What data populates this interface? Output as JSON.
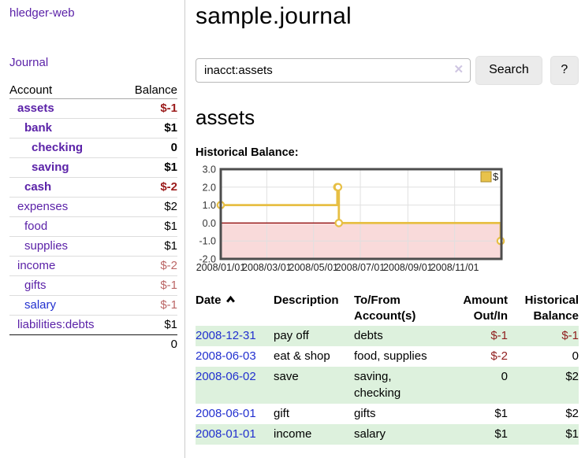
{
  "app": {
    "title": "hledger-web"
  },
  "sidebar": {
    "nav": {
      "journal_label": "Journal"
    },
    "accounts_table": {
      "headers": [
        "Account",
        "Balance"
      ],
      "rows": [
        {
          "account": "assets",
          "depth": 1,
          "bold": true,
          "balance": "$-1",
          "balance_style": "neg-strong"
        },
        {
          "account": "bank",
          "depth": 2,
          "bold": true,
          "balance": "$1",
          "balance_style": "pos"
        },
        {
          "account": "checking",
          "depth": 3,
          "bold": true,
          "balance": "0",
          "balance_style": "pos"
        },
        {
          "account": "saving",
          "depth": 3,
          "bold": true,
          "balance": "$1",
          "balance_style": "pos"
        },
        {
          "account": "cash",
          "depth": 2,
          "bold": true,
          "balance": "$-2",
          "balance_style": "neg-strong"
        },
        {
          "account": "expenses",
          "depth": 1,
          "bold": false,
          "balance": "$2",
          "balance_style": "pos"
        },
        {
          "account": "food",
          "depth": 2,
          "bold": false,
          "balance": "$1",
          "balance_style": "pos"
        },
        {
          "account": "supplies",
          "depth": 2,
          "bold": false,
          "balance": "$1",
          "balance_style": "pos"
        },
        {
          "account": "income",
          "depth": 1,
          "bold": false,
          "balance": "$-2",
          "balance_style": "neg-soft"
        },
        {
          "account": "gifts",
          "depth": 2,
          "bold": false,
          "balance": "$-1",
          "balance_style": "neg-soft"
        },
        {
          "account": "salary",
          "depth": 2,
          "bold": false,
          "balance": "$-1",
          "balance_style": "neg-soft",
          "link_color": "blue"
        },
        {
          "account": "liabilities:debts",
          "depth": 1,
          "bold": false,
          "balance": "$1",
          "balance_style": "pos"
        }
      ],
      "total": "0"
    }
  },
  "main": {
    "title": "sample.journal",
    "search": {
      "value": "inacct:assets",
      "clear_icon": "✕",
      "button_label": "Search",
      "help_label": "?"
    },
    "section_title": "assets",
    "chart_label": "Historical Balance:"
  },
  "chart_data": {
    "type": "line",
    "subtype": "step-after",
    "title": "Historical Balance:",
    "legend": "$",
    "legend_position": "top-right",
    "grid": true,
    "x_range": [
      "2008/01/01",
      "2009/01/01"
    ],
    "y_range": [
      -2,
      3
    ],
    "x_ticks": [
      "2008/01/01",
      "2008/03/01",
      "2008/05/01",
      "2008/07/01",
      "2008/09/01",
      "2008/11/01"
    ],
    "y_ticks": [
      "3.0",
      "2.0",
      "1.0",
      "0.0",
      "-1.0",
      "-2.0"
    ],
    "series": [
      {
        "name": "$",
        "color": "#e7bf44",
        "points": [
          {
            "date": "2008/01/01",
            "value": 1
          },
          {
            "date": "2008/06/01",
            "value": 2
          },
          {
            "date": "2008/06/02",
            "value": 2
          },
          {
            "date": "2008/06/03",
            "value": 0
          },
          {
            "date": "2008/12/31",
            "value": -1
          }
        ]
      }
    ],
    "colors": {
      "negative_region_fill": "#f9dada",
      "zero_line": "#8b0000",
      "gridline": "#e0e0e0",
      "plot_border": "#4d4d4d",
      "marker_fill": "#ffffff",
      "legend_swatch": "#e8c24a",
      "legend_swatch_border": "#a8892a"
    }
  },
  "register_table": {
    "headers": [
      [
        "Date",
        ""
      ],
      [
        "Description",
        ""
      ],
      [
        "To/From",
        "Account(s)"
      ],
      [
        "Amount",
        "Out/In"
      ],
      [
        "Historical",
        "Balance"
      ]
    ],
    "sort": {
      "column": "Date",
      "icon": "chevron-up-icon"
    },
    "rows": [
      {
        "date": "2008-12-31",
        "description": "pay off",
        "accounts": "debts",
        "amount": "$-1",
        "amount_neg": true,
        "balance": "$-1",
        "balance_neg": true
      },
      {
        "date": "2008-06-03",
        "description": "eat & shop",
        "accounts": "food, supplies",
        "amount": "$-2",
        "amount_neg": true,
        "balance": "0",
        "balance_neg": false
      },
      {
        "date": "2008-06-02",
        "description": "save",
        "accounts": "saving, checking",
        "amount": "0",
        "amount_neg": false,
        "balance": "$2",
        "balance_neg": false
      },
      {
        "date": "2008-06-01",
        "description": "gift",
        "accounts": "gifts",
        "amount": "$1",
        "amount_neg": false,
        "balance": "$2",
        "balance_neg": false
      },
      {
        "date": "2008-01-01",
        "description": "income",
        "accounts": "salary",
        "amount": "$1",
        "amount_neg": false,
        "balance": "$1",
        "balance_neg": false
      }
    ]
  }
}
